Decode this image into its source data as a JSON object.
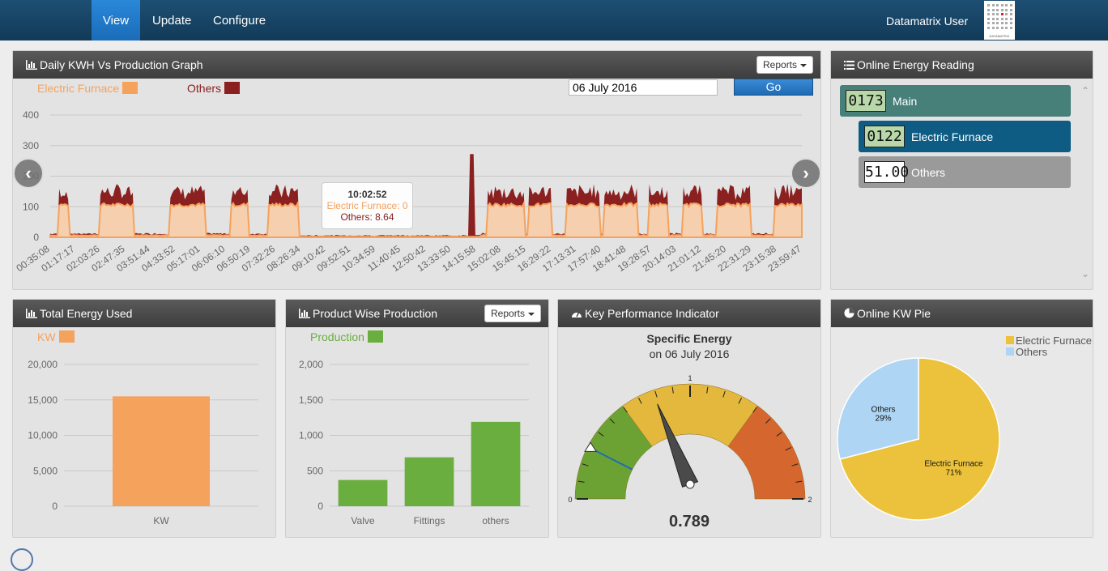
{
  "nav": {
    "items": [
      "View",
      "Update",
      "Configure"
    ],
    "active": "View",
    "user": "Datamatrix User",
    "logo_text": "DATAMATRIX"
  },
  "kwh_panel": {
    "title": "Daily KWH Vs Production Graph",
    "reports_label": "Reports",
    "date_value": "06 July 2016",
    "go_label": "Go",
    "legend": [
      {
        "label": "Electric Furnace",
        "color": "#f5a25d"
      },
      {
        "label": "Others",
        "color": "#8b2020"
      }
    ],
    "tooltip": {
      "time": "10:02:52",
      "line1": "Electric Furnace: 0",
      "line2": "Others: 8.64"
    }
  },
  "reading_panel": {
    "title": "Online Energy Reading",
    "items": [
      {
        "value": "0173",
        "label": "Main"
      },
      {
        "value": "0122",
        "label": "Electric Furnace"
      },
      {
        "value": "51.00",
        "label": "Others"
      }
    ]
  },
  "total_panel": {
    "title": "Total Energy Used",
    "legend": "KW"
  },
  "product_panel": {
    "title": "Product Wise Production",
    "reports_label": "Reports",
    "legend": "Production"
  },
  "kpi_panel": {
    "title": "Key Performance Indicator",
    "subtitle": "Specific Energy",
    "date_line": "on 06 July 2016",
    "value": "0.789",
    "min_label": "0",
    "mid_label": "1",
    "max_label": "2",
    "gauge_value": 0.789,
    "target_value": 0.3
  },
  "pie_panel": {
    "title": "Online KW Pie"
  },
  "chart_data": [
    {
      "type": "area",
      "title": "",
      "series": [
        {
          "name": "Electric Furnace",
          "color": "#f5a25d"
        },
        {
          "name": "Others",
          "color": "#8b2020"
        }
      ],
      "x_ticks": [
        "00:35:08",
        "01:17:17",
        "02:03:26",
        "02:47:35",
        "03:51:44",
        "04:33:52",
        "05:17:01",
        "06:06:10",
        "06:50:19",
        "07:32:26",
        "08:26:34",
        "09:10:42",
        "09:52:51",
        "10:34:59",
        "11:40:45",
        "12:50:42",
        "13:33:50",
        "14:15:58",
        "15:02:08",
        "15:45:15",
        "16:29:22",
        "17:13:31",
        "17:57:40",
        "18:41:48",
        "19:28:57",
        "20:14:03",
        "21:01:12",
        "21:45:20",
        "22:31:29",
        "23:15:38",
        "23:59:47"
      ],
      "y_ticks": [
        "0",
        "100",
        "200",
        "300",
        "400"
      ],
      "ylim": [
        0,
        400
      ],
      "grid": true
    },
    {
      "type": "bar",
      "categories": [
        "KW"
      ],
      "values": [
        15500
      ],
      "y_ticks": [
        "0",
        "5,000",
        "10,000",
        "15,000",
        "20,000"
      ],
      "ylim": [
        0,
        20000
      ],
      "color": "#f5a25d"
    },
    {
      "type": "bar",
      "categories": [
        "Valve",
        "Fittings",
        "others"
      ],
      "values": [
        370,
        690,
        1190
      ],
      "y_ticks": [
        "0",
        "500",
        "1,000",
        "1,500",
        "2,000"
      ],
      "ylim": [
        0,
        2000
      ],
      "color": "#6aae3f"
    },
    {
      "type": "pie",
      "slices": [
        {
          "label": "Electric Furnace",
          "pct_label": "71%",
          "value": 71,
          "color": "#ecc23d"
        },
        {
          "label": "Others",
          "pct_label": "29%",
          "value": 29,
          "color": "#aed5f3"
        }
      ]
    }
  ]
}
